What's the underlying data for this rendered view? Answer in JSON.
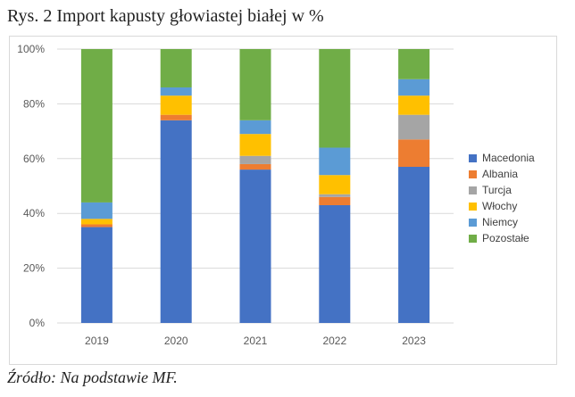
{
  "title": "Rys. 2 Import kapusty głowiastej białej w %",
  "source": "Źródło: Na podstawie MF.",
  "chart_data": {
    "type": "bar",
    "stacked": true,
    "categories": [
      "2019",
      "2020",
      "2021",
      "2022",
      "2023"
    ],
    "ylim": [
      0,
      100
    ],
    "yticks": [
      "0%",
      "20%",
      "40%",
      "60%",
      "80%",
      "100%"
    ],
    "grid": true,
    "legend_position": "right",
    "series": [
      {
        "name": "Macedonia",
        "color": "#4472C4",
        "values": [
          35,
          74,
          56,
          43,
          57
        ]
      },
      {
        "name": "Albania",
        "color": "#ED7D31",
        "values": [
          1,
          2,
          2,
          3,
          10
        ]
      },
      {
        "name": "Turcja",
        "color": "#A5A5A5",
        "values": [
          0,
          0,
          3,
          1,
          9
        ]
      },
      {
        "name": "Włochy",
        "color": "#FFC000",
        "values": [
          2,
          7,
          8,
          7,
          7
        ]
      },
      {
        "name": "Niemcy",
        "color": "#5B9BD5",
        "values": [
          6,
          3,
          5,
          10,
          6
        ]
      },
      {
        "name": "Pozostałe",
        "color": "#70AD47",
        "values": [
          56,
          14,
          26,
          36,
          11
        ]
      }
    ]
  }
}
